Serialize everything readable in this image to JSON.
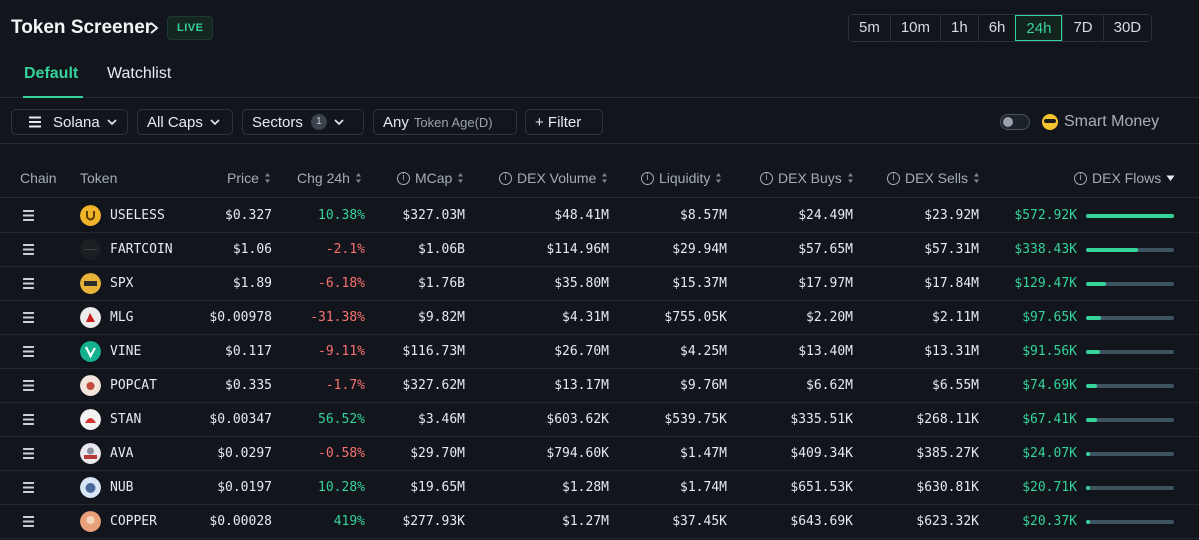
{
  "header": {
    "title": "Token Screener",
    "live_badge": "LIVE",
    "timeframes": [
      "5m",
      "10m",
      "1h",
      "6h",
      "24h",
      "7D",
      "30D"
    ],
    "active_timeframe": "24h"
  },
  "tabs": [
    {
      "label": "Default",
      "active": true
    },
    {
      "label": "Watchlist",
      "active": false
    }
  ],
  "filters": {
    "chain": "Solana",
    "caps": "All Caps",
    "sectors": "Sectors",
    "sectors_count": "1",
    "age_value": "Any",
    "age_label": "Token Age(D)",
    "filter_button": "+ Filter",
    "smart_money_label": "Smart Money",
    "smart_money_on": false
  },
  "table": {
    "columns": {
      "chain": "Chain",
      "token": "Token",
      "price": "Price",
      "chg": "Chg 24h",
      "mcap": "MCap",
      "dex_volume": "DEX Volume",
      "liquidity": "Liquidity",
      "dex_buys": "DEX Buys",
      "dex_sells": "DEX Sells",
      "dex_flows": "DEX Flows"
    },
    "rows": [
      {
        "token": "USELESS",
        "icon": "useless-logo",
        "price": "$0.327",
        "chg": "10.38%",
        "dir": "up",
        "mcap": "$327.03M",
        "vol": "$48.41M",
        "liq": "$8.57M",
        "buys": "$24.49M",
        "sells": "$23.92M",
        "flows": "$572.92K",
        "flow_fraction": 1.0
      },
      {
        "token": "FARTCOIN",
        "icon": "fartcoin-logo",
        "price": "$1.06",
        "chg": "-2.1%",
        "dir": "down",
        "mcap": "$1.06B",
        "vol": "$114.96M",
        "liq": "$29.94M",
        "buys": "$57.65M",
        "sells": "$57.31M",
        "flows": "$338.43K",
        "flow_fraction": 0.59
      },
      {
        "token": "SPX",
        "icon": "spx-logo",
        "price": "$1.89",
        "chg": "-6.18%",
        "dir": "down",
        "mcap": "$1.76B",
        "vol": "$35.80M",
        "liq": "$15.37M",
        "buys": "$17.97M",
        "sells": "$17.84M",
        "flows": "$129.47K",
        "flow_fraction": 0.23
      },
      {
        "token": "MLG",
        "icon": "mlg-logo",
        "price": "$0.00978",
        "chg": "-31.38%",
        "dir": "down",
        "mcap": "$9.82M",
        "vol": "$4.31M",
        "liq": "$755.05K",
        "buys": "$2.20M",
        "sells": "$2.11M",
        "flows": "$97.65K",
        "flow_fraction": 0.17
      },
      {
        "token": "VINE",
        "icon": "vine-logo",
        "price": "$0.117",
        "chg": "-9.11%",
        "dir": "down",
        "mcap": "$116.73M",
        "vol": "$26.70M",
        "liq": "$4.25M",
        "buys": "$13.40M",
        "sells": "$13.31M",
        "flows": "$91.56K",
        "flow_fraction": 0.16
      },
      {
        "token": "POPCAT",
        "icon": "popcat-logo",
        "price": "$0.335",
        "chg": "-1.7%",
        "dir": "down",
        "mcap": "$327.62M",
        "vol": "$13.17M",
        "liq": "$9.76M",
        "buys": "$6.62M",
        "sells": "$6.55M",
        "flows": "$74.69K",
        "flow_fraction": 0.13
      },
      {
        "token": "STAN",
        "icon": "stan-logo",
        "price": "$0.00347",
        "chg": "56.52%",
        "dir": "up",
        "mcap": "$3.46M",
        "vol": "$603.62K",
        "liq": "$539.75K",
        "buys": "$335.51K",
        "sells": "$268.11K",
        "flows": "$67.41K",
        "flow_fraction": 0.12
      },
      {
        "token": "AVA",
        "icon": "ava-logo",
        "price": "$0.0297",
        "chg": "-0.58%",
        "dir": "down",
        "mcap": "$29.70M",
        "vol": "$794.60K",
        "liq": "$1.47M",
        "buys": "$409.34K",
        "sells": "$385.27K",
        "flows": "$24.07K",
        "flow_fraction": 0.04
      },
      {
        "token": "NUB",
        "icon": "nub-logo",
        "price": "$0.0197",
        "chg": "10.28%",
        "dir": "up",
        "mcap": "$19.65M",
        "vol": "$1.28M",
        "liq": "$1.74M",
        "buys": "$651.53K",
        "sells": "$630.81K",
        "flows": "$20.71K",
        "flow_fraction": 0.04
      },
      {
        "token": "COPPER",
        "icon": "copper-logo",
        "price": "$0.00028",
        "chg": "419%",
        "dir": "up",
        "mcap": "$277.93K",
        "vol": "$1.27M",
        "liq": "$37.45K",
        "buys": "$643.69K",
        "sells": "$623.32K",
        "flows": "$20.37K",
        "flow_fraction": 0.04
      }
    ]
  },
  "colors": {
    "background": "#12161c",
    "accent_green": "#34d399",
    "negative_red": "#f87171",
    "bar_track": "#3d5560"
  }
}
